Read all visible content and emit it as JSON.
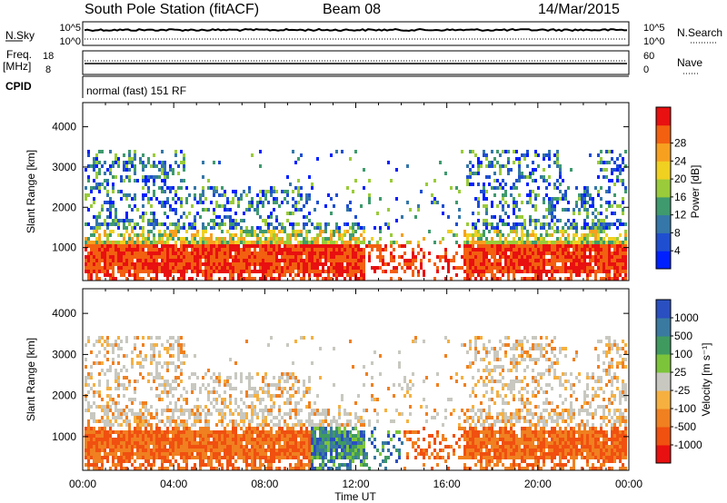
{
  "header": {
    "station": "South Pole Station (fitACF)",
    "beam": "Beam 08",
    "date": "14/Mar/2015"
  },
  "panels": {
    "nsky": {
      "label": "N.Sky",
      "ticks": [
        "10^5",
        "10^0"
      ]
    },
    "nsearch": {
      "label": "N.Search",
      "ticks": [
        "10^5",
        "10^0"
      ]
    },
    "freq": {
      "label_top": "Freq.",
      "label_unit": "[MHz]",
      "ticks": [
        "18",
        "8"
      ]
    },
    "nave": {
      "label": "Nave",
      "ticks": [
        "60",
        "0"
      ]
    },
    "cpid": {
      "label": "CPID",
      "text": "normal (fast) 151 RF"
    }
  },
  "chart_data": [
    {
      "type": "heatmap",
      "name": "power",
      "ylabel": "Slant Range [km]",
      "xlabel": "Time UT",
      "x_ticks": [
        "00:00",
        "04:00",
        "08:00",
        "12:00",
        "16:00",
        "20:00",
        "00:00"
      ],
      "x_range_hours": [
        0,
        24
      ],
      "y_ticks": [
        1000,
        2000,
        3000,
        4000
      ],
      "y_range": [
        180,
        4600
      ],
      "colorbar": {
        "label": "Power [dB]",
        "ticks": [
          "4",
          "8",
          "12",
          "16",
          "20",
          "24",
          "28"
        ],
        "colors": [
          "#0020ff",
          "#1f4fd0",
          "#3577a8",
          "#3f9a6e",
          "#9acb3a",
          "#f0d020",
          "#f7a020",
          "#f26010",
          "#e81010"
        ]
      }
    },
    {
      "type": "heatmap",
      "name": "velocity",
      "ylabel": "Slant Range [km]",
      "x_ticks": [
        "00:00",
        "04:00",
        "08:00",
        "12:00",
        "16:00",
        "20:00",
        "00:00"
      ],
      "y_ticks": [
        1000,
        2000,
        3000,
        4000
      ],
      "y_range": [
        180,
        4600
      ],
      "colorbar": {
        "label": "Velocity [m s⁻¹]",
        "ticks": [
          "1000",
          "500",
          "100",
          "25",
          "-25",
          "-100",
          "-500",
          "-1000"
        ],
        "colors": [
          "#2a4fc0",
          "#3a7aa0",
          "#3f9a60",
          "#7cc43a",
          "#c8c8c0",
          "#f5b040",
          "#f08020",
          "#f05010",
          "#e81010"
        ]
      }
    }
  ]
}
